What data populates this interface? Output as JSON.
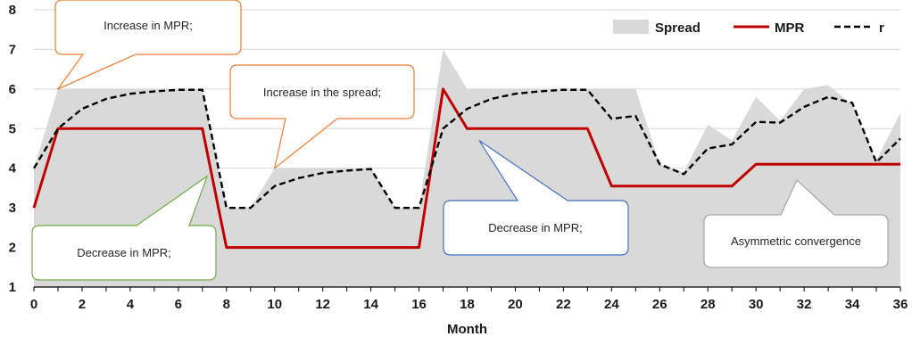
{
  "chart_data": {
    "type": "line",
    "xlabel": "Month",
    "ylabel": "",
    "xlim": [
      0,
      36
    ],
    "ylim": [
      1,
      8
    ],
    "x_ticks": [
      0,
      2,
      4,
      6,
      8,
      10,
      12,
      14,
      16,
      18,
      20,
      22,
      24,
      26,
      28,
      30,
      32,
      34,
      36
    ],
    "y_ticks": [
      1,
      2,
      3,
      4,
      5,
      6,
      7,
      8
    ],
    "grid": "horizontal",
    "legend_position": "top-right",
    "x": [
      0,
      1,
      2,
      3,
      4,
      5,
      6,
      7,
      8,
      9,
      10,
      11,
      12,
      13,
      14,
      15,
      16,
      17,
      18,
      19,
      20,
      21,
      22,
      23,
      24,
      25,
      26,
      27,
      28,
      29,
      30,
      31,
      32,
      33,
      34,
      35,
      36
    ],
    "series": [
      {
        "name": "Spread",
        "style": "area",
        "color": "#d9d9d9",
        "values": [
          4,
          6,
          6,
          6,
          6,
          6,
          6,
          6,
          3,
          3,
          4,
          4,
          4,
          4,
          4,
          3,
          3,
          7,
          6,
          6,
          6,
          6,
          6,
          6,
          6,
          6,
          4.1,
          3.9,
          5.1,
          4.7,
          5.8,
          5.2,
          6,
          6.1,
          5.6,
          4.2,
          5.4
        ]
      },
      {
        "name": "MPR",
        "style": "line",
        "color": "#c00000",
        "values": [
          3,
          5,
          5,
          5,
          5,
          5,
          5,
          5,
          2,
          2,
          2,
          2,
          2,
          2,
          2,
          2,
          2,
          6,
          5,
          5,
          5,
          5,
          5,
          5,
          3.55,
          3.55,
          3.55,
          3.55,
          3.55,
          3.55,
          4.1,
          4.1,
          4.1,
          4.1,
          4.1,
          4.1,
          4.1
        ]
      },
      {
        "name": "r",
        "style": "dashed",
        "color": "#000000",
        "values": [
          4,
          5,
          5.5,
          5.75,
          5.88,
          5.94,
          5.98,
          5.98,
          3,
          3,
          3.55,
          3.75,
          3.88,
          3.94,
          3.98,
          3,
          3,
          5,
          5.5,
          5.75,
          5.88,
          5.94,
          5.98,
          5.98,
          5.25,
          5.32,
          4.1,
          3.85,
          4.5,
          4.6,
          5.17,
          5.15,
          5.55,
          5.8,
          5.65,
          4.15,
          4.75
        ]
      }
    ],
    "annotations": [
      {
        "text": "Increase in MPR;",
        "color": "#ed7d31",
        "pointer_x": 1,
        "pointer_y": 6
      },
      {
        "text": "Increase in the spread;",
        "color": "#ed7d31",
        "pointer_x": 10,
        "pointer_y": 4
      },
      {
        "text": "Decrease in MPR;",
        "color": "#70ad47",
        "pointer_x": 7.2,
        "pointer_y": 3.8
      },
      {
        "text": "Decrease in MPR;",
        "color": "#4472c4",
        "pointer_x": 18.5,
        "pointer_y": 4.7
      },
      {
        "text": "Asymmetric convergence",
        "color": "#a6a6a6",
        "pointer_x": 31.7,
        "pointer_y": 3.7
      }
    ]
  }
}
